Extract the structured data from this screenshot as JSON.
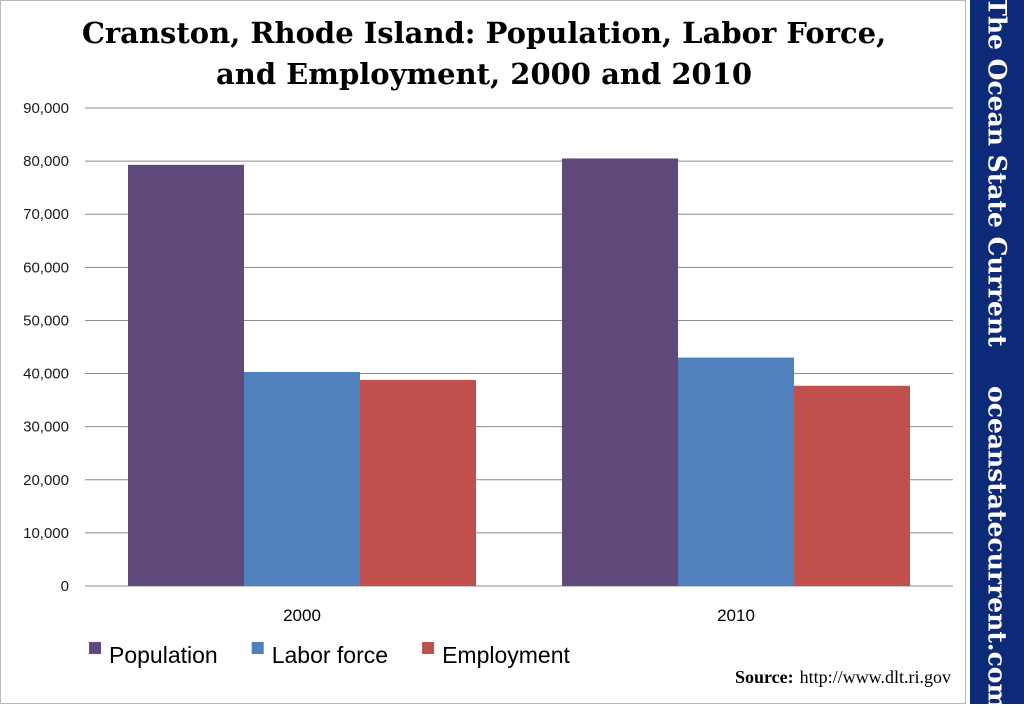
{
  "chart_data": {
    "type": "bar",
    "title": "Cranston, Rhode Island: Population, Labor Force, and Employment, 2000 and 2010",
    "title_lines": [
      "Cranston, Rhode Island: Population, Labor Force,",
      "and Employment, 2000 and 2010"
    ],
    "categories": [
      "2000",
      "2010"
    ],
    "series": [
      {
        "name": "Population",
        "color": "#604a7b",
        "values": [
          79300,
          80500
        ]
      },
      {
        "name": "Labor force",
        "color": "#4f81bd",
        "values": [
          40300,
          43000
        ]
      },
      {
        "name": "Employment",
        "color": "#c0504d",
        "values": [
          38800,
          37700
        ]
      }
    ],
    "ylim": [
      0,
      90000
    ],
    "yticks": [
      "0",
      "10,000",
      "20,000",
      "30,000",
      "40,000",
      "50,000",
      "60,000",
      "70,000",
      "80,000",
      "90,000"
    ],
    "grid": true,
    "legend_position": "bottom-left",
    "xlabel": "",
    "ylabel": "",
    "source_prefix": "Source:",
    "source_url": "http://www.dlt.ri.gov"
  },
  "banner": {
    "brand_name": "The Ocean State Current",
    "brand_url": "oceanstatecurrent.com"
  }
}
